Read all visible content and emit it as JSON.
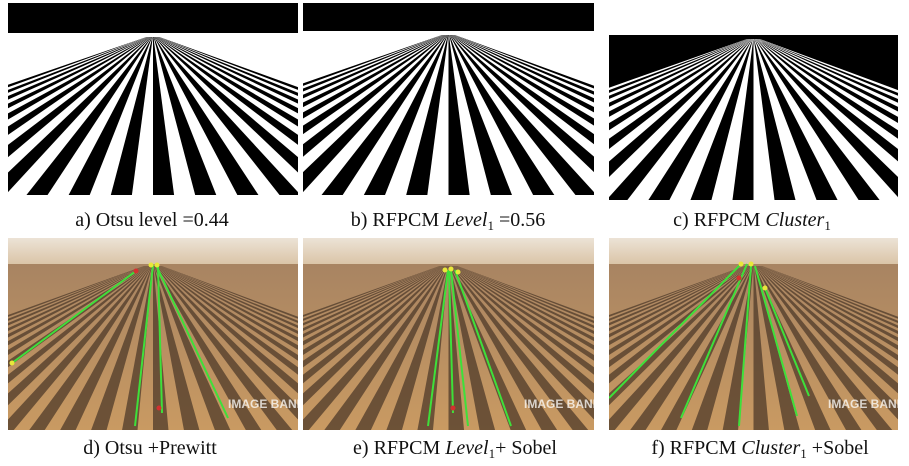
{
  "panels": [
    {
      "caption": [
        "a) Otsu level =0.44"
      ]
    },
    {
      "caption": [
        "b) RFPCM ",
        "Level",
        "1",
        " =0.56"
      ]
    },
    {
      "caption": [
        "c) RFPCM ",
        "Cluster",
        "1"
      ]
    },
    {
      "caption": [
        "d) Otsu +Prewitt"
      ]
    },
    {
      "caption": [
        "e) RFPCM ",
        "Level",
        "1",
        "+ Sobel"
      ]
    },
    {
      "caption": [
        "f) RFPCM ",
        "Cluster",
        "1",
        " +Sobel"
      ]
    }
  ],
  "watermark": "IMAGE BANK"
}
